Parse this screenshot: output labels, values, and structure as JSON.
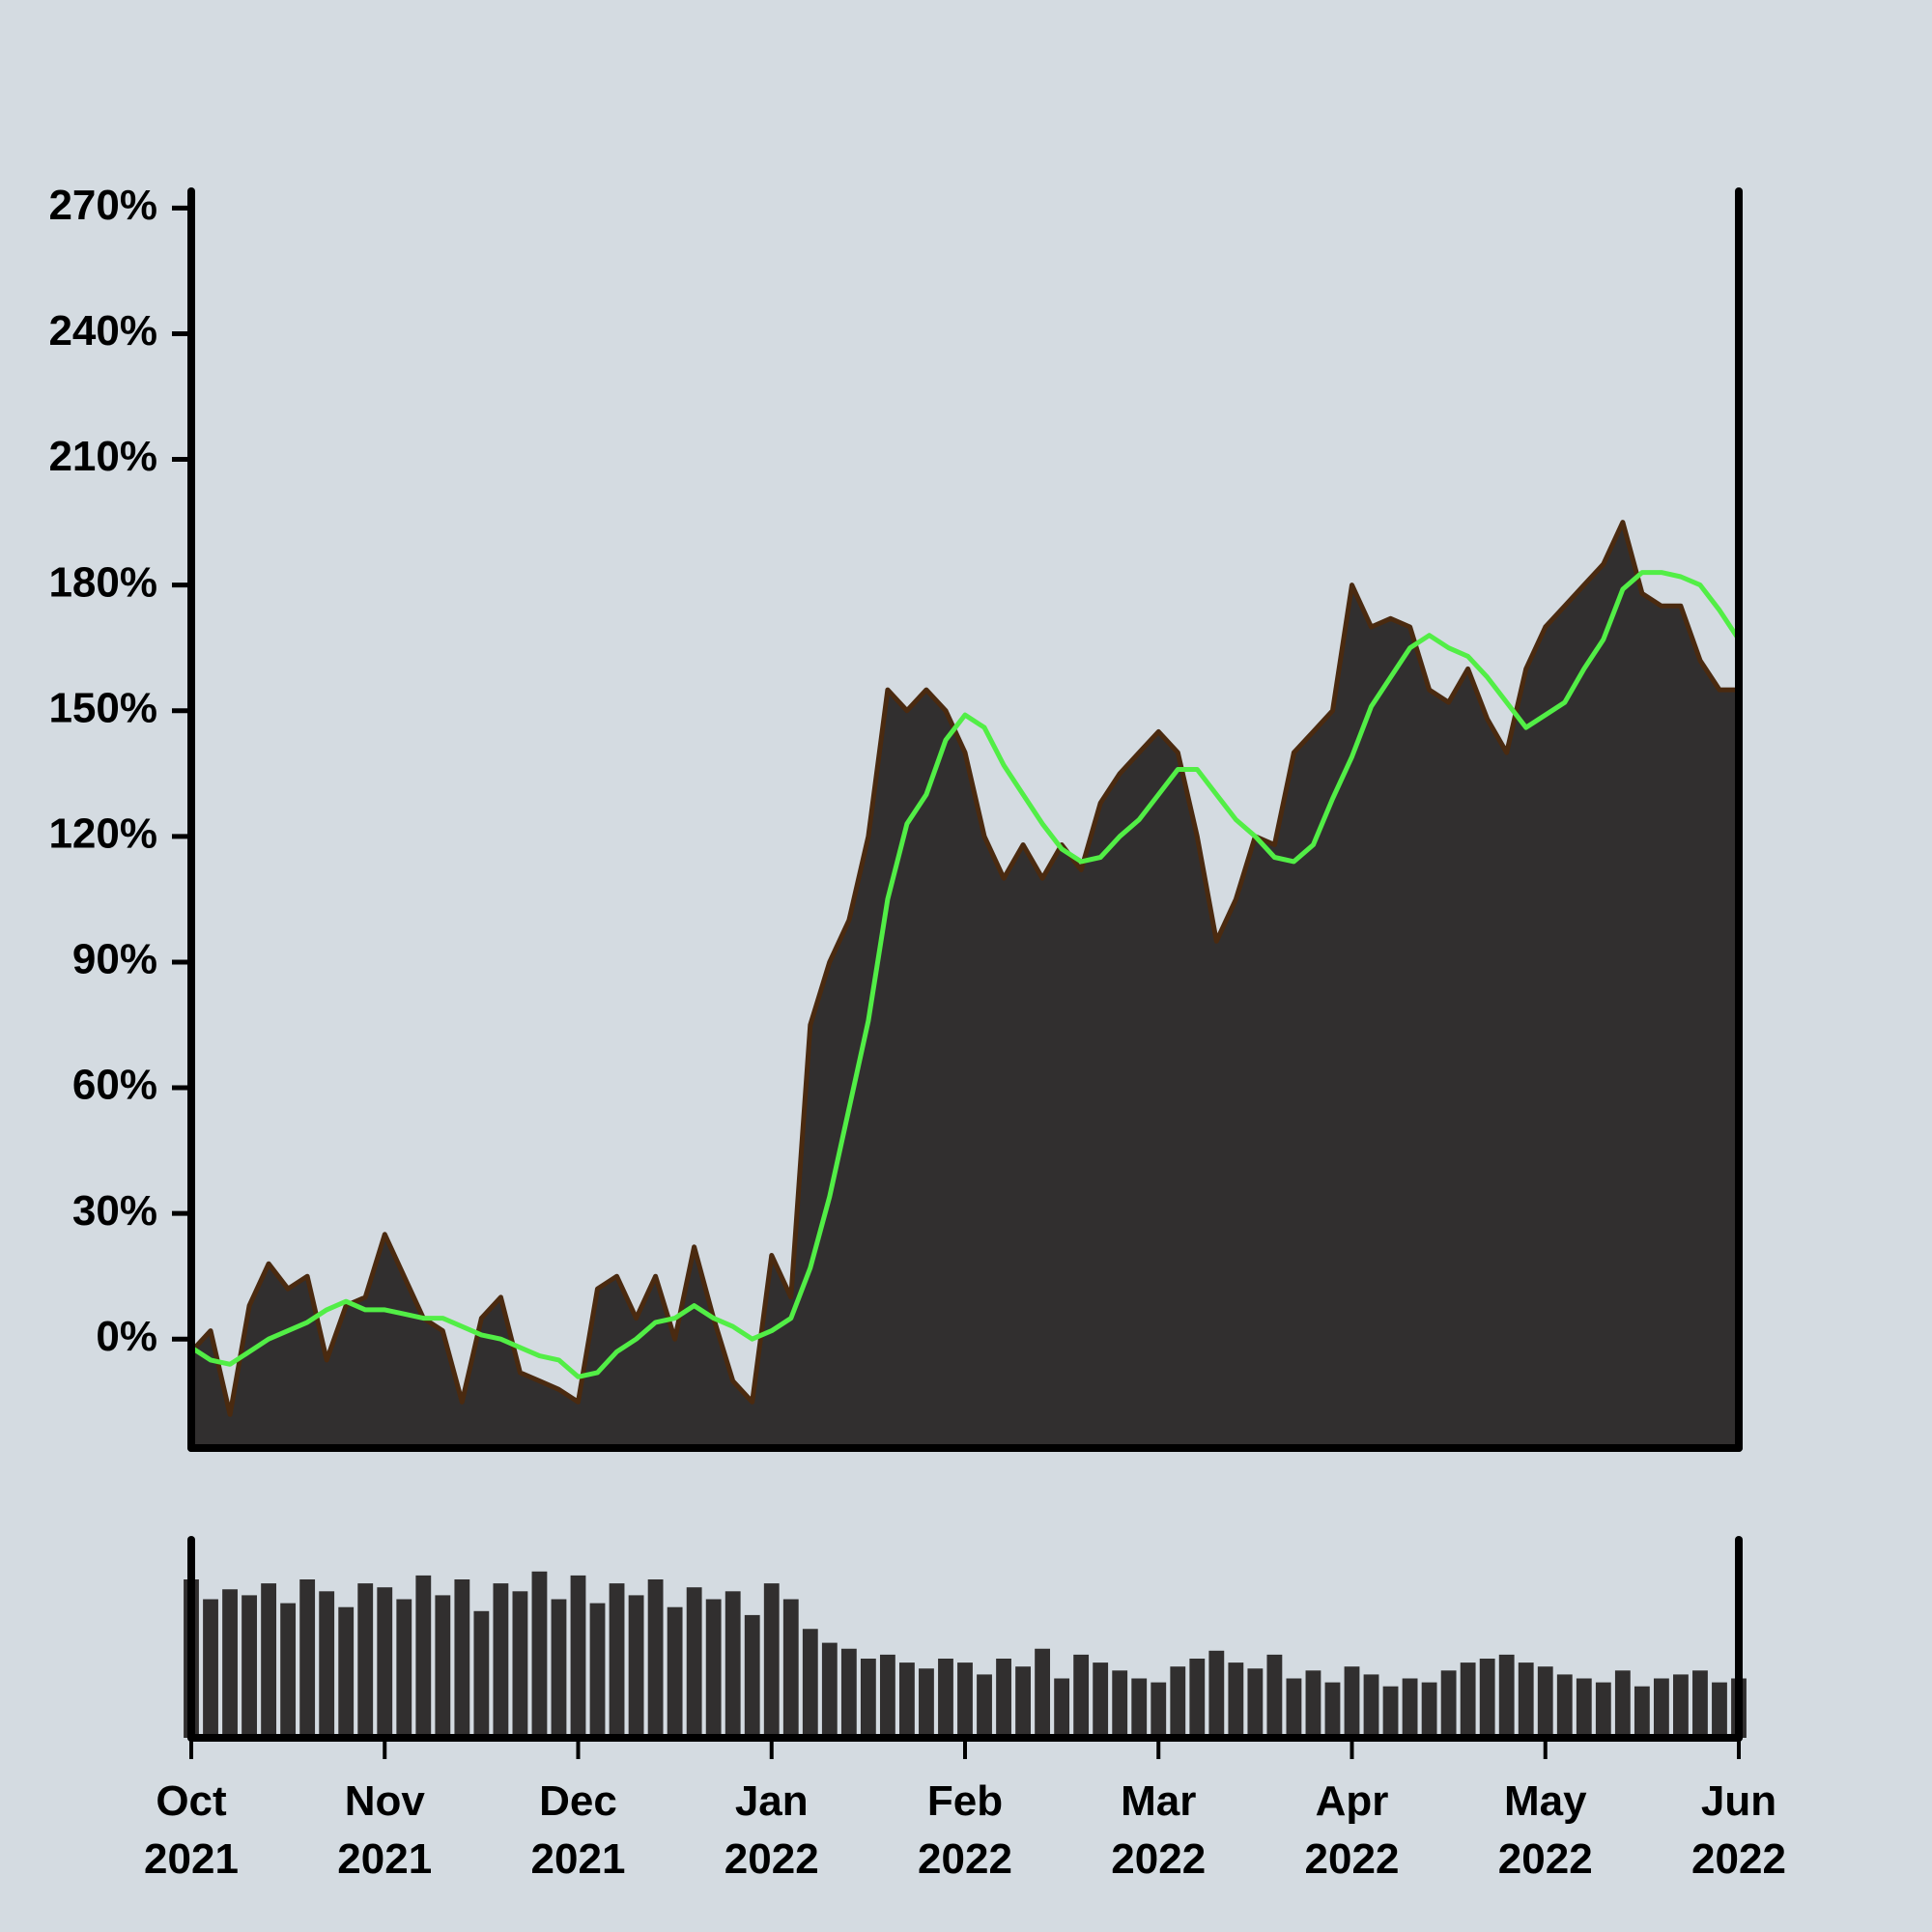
{
  "chart_data": [
    {
      "type": "area",
      "x": [
        0,
        1,
        2,
        3,
        4,
        5,
        6,
        7,
        8,
        9,
        10,
        11,
        12,
        13,
        14,
        15,
        16,
        17,
        18,
        19,
        20,
        21,
        22,
        23,
        24,
        25,
        26,
        27,
        28,
        29,
        30,
        31,
        32,
        33,
        34,
        35,
        36,
        37,
        38,
        39,
        40,
        41,
        42,
        43,
        44,
        45,
        46,
        47,
        48,
        49,
        50,
        51,
        52,
        53,
        54,
        55,
        56,
        57,
        58,
        59,
        60,
        61,
        62,
        63,
        64,
        65,
        66,
        67,
        68,
        69,
        70,
        71,
        72,
        73,
        74,
        75,
        76,
        77,
        78,
        79,
        80
      ],
      "series": [
        {
          "color": "#312f2f",
          "edge": "#4a2a10",
          "values": [
            -3,
            2,
            -18,
            8,
            18,
            12,
            15,
            -5,
            8,
            10,
            25,
            15,
            5,
            2,
            -15,
            5,
            10,
            -8,
            -10,
            -12,
            -15,
            12,
            15,
            5,
            15,
            0,
            22,
            5,
            -10,
            -15,
            20,
            10,
            75,
            90,
            100,
            120,
            155,
            150,
            155,
            150,
            140,
            120,
            110,
            118,
            110,
            118,
            112,
            128,
            135,
            140,
            145,
            140,
            120,
            95,
            105,
            120,
            118,
            140,
            145,
            150,
            180,
            170,
            172,
            170,
            155,
            152,
            160,
            148,
            140,
            160,
            170,
            175,
            180,
            185,
            195,
            178,
            175,
            175,
            162,
            155,
            155
          ]
        },
        {
          "color": "#52ee46",
          "values": [
            -2,
            -5,
            -6,
            -3,
            0,
            2,
            4,
            7,
            9,
            7,
            7,
            6,
            5,
            5,
            3,
            1,
            0,
            -2,
            -4,
            -5,
            -9,
            -8,
            -3,
            0,
            4,
            5,
            8,
            5,
            3,
            0,
            2,
            5,
            17,
            34,
            55,
            76,
            105,
            123,
            130,
            143,
            149,
            146,
            137,
            130,
            123,
            117,
            114,
            115,
            120,
            124,
            130,
            136,
            136,
            130,
            124,
            120,
            115,
            114,
            118,
            129,
            139,
            151,
            158,
            165,
            168,
            165,
            163,
            158,
            152,
            146,
            149,
            152,
            160,
            167,
            179,
            183,
            183,
            182,
            180,
            174,
            167
          ]
        }
      ],
      "xlim": [
        0,
        80
      ],
      "xticks": [
        {
          "value": 0,
          "label": "Oct\n2021"
        },
        {
          "value": 10,
          "label": "Nov\n2021"
        },
        {
          "value": 20,
          "label": "Dec\n2021"
        },
        {
          "value": 30,
          "label": "Jan\n2022"
        },
        {
          "value": 40,
          "label": "Feb\n2022"
        },
        {
          "value": 50,
          "label": "Mar\n2022"
        },
        {
          "value": 60,
          "label": "Apr\n2022"
        },
        {
          "value": 70,
          "label": "May\n2022"
        },
        {
          "value": 80,
          "label": "Jun\n2022"
        }
      ],
      "ylim": [
        -26,
        274
      ],
      "yticks": [
        {
          "value": 0,
          "label": "0%"
        },
        {
          "value": 30,
          "label": "30%"
        },
        {
          "value": 60,
          "label": "60%"
        },
        {
          "value": 90,
          "label": "90%"
        },
        {
          "value": 120,
          "label": "120%"
        },
        {
          "value": 150,
          "label": "150%"
        },
        {
          "value": 180,
          "label": "180%"
        },
        {
          "value": 210,
          "label": "210%"
        },
        {
          "value": 240,
          "label": "240%"
        },
        {
          "value": 270,
          "label": "270%"
        }
      ]
    },
    {
      "type": "bar",
      "color": "#312f2f",
      "values": [
        80,
        70,
        75,
        72,
        78,
        68,
        80,
        74,
        66,
        78,
        76,
        70,
        82,
        72,
        80,
        64,
        78,
        74,
        84,
        70,
        82,
        68,
        78,
        72,
        80,
        66,
        76,
        70,
        74,
        62,
        78,
        70,
        55,
        48,
        45,
        40,
        42,
        38,
        35,
        40,
        38,
        32,
        40,
        36,
        45,
        30,
        42,
        38,
        34,
        30,
        28,
        36,
        40,
        44,
        38,
        35,
        42,
        30,
        34,
        28,
        36,
        32,
        26,
        30,
        28,
        34,
        38,
        40,
        42,
        38,
        36,
        32,
        30,
        28,
        34,
        26,
        30,
        32,
        34,
        28,
        30
      ],
      "ylim": [
        0,
        100
      ]
    }
  ]
}
